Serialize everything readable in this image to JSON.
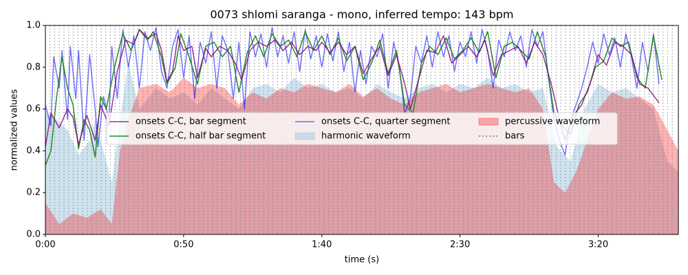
{
  "chart_data": {
    "type": "line",
    "title": "0073 shlomi saranga - mono, inferred tempo: 143 bpm",
    "x_label": "time (s)",
    "y_label": "normalized values",
    "xlim": [
      0,
      229
    ],
    "ylim": [
      0,
      1
    ],
    "xticks": [
      {
        "value": 0,
        "label": "0:00"
      },
      {
        "value": 50,
        "label": "0:50"
      },
      {
        "value": 100,
        "label": "1:40"
      },
      {
        "value": 150,
        "label": "2:30"
      },
      {
        "value": 200,
        "label": "3:20"
      }
    ],
    "yticks": [
      {
        "value": 0,
        "label": "0.0"
      },
      0.2,
      0.4,
      0.6,
      0.8,
      {
        "value": 1,
        "label": "1.0"
      }
    ],
    "legend": "center",
    "legend_columns": 3,
    "series": [
      {
        "name": "onsets C-C, bar segment",
        "type": "line",
        "color": "#800080",
        "opacity": 0.8,
        "x": [
          0,
          2,
          5,
          8,
          10,
          12,
          15,
          18,
          20,
          23,
          26,
          29,
          32,
          34,
          37,
          40,
          42,
          44,
          46,
          48,
          50,
          53,
          55,
          58,
          60,
          63,
          66,
          69,
          71,
          74,
          77,
          80,
          83,
          86,
          89,
          92,
          95,
          98,
          100,
          103,
          106,
          109,
          112,
          115,
          118,
          121,
          124,
          127,
          130,
          132,
          135,
          138,
          141,
          144,
          147,
          150,
          153,
          156,
          159,
          162,
          165,
          168,
          171,
          174,
          177,
          180,
          183,
          186,
          188,
          191,
          194,
          197,
          200,
          203,
          206,
          209,
          212,
          215,
          218,
          222
        ],
        "values": [
          0.42,
          0.58,
          0.51,
          0.6,
          0.56,
          0.43,
          0.57,
          0.45,
          0.62,
          0.52,
          0.78,
          0.93,
          0.91,
          0.98,
          0.94,
          0.96,
          0.88,
          0.73,
          0.78,
          0.95,
          0.88,
          0.9,
          0.75,
          0.89,
          0.85,
          0.9,
          0.88,
          0.81,
          0.74,
          0.88,
          0.92,
          0.9,
          0.93,
          0.88,
          0.92,
          0.86,
          0.9,
          0.88,
          0.92,
          0.87,
          0.92,
          0.86,
          0.9,
          0.77,
          0.84,
          0.9,
          0.76,
          0.86,
          0.72,
          0.6,
          0.74,
          0.88,
          0.87,
          0.95,
          0.82,
          0.86,
          0.9,
          0.85,
          0.93,
          0.76,
          0.86,
          0.88,
          0.9,
          0.82,
          0.92,
          0.86,
          0.72,
          0.55,
          0.45,
          0.57,
          0.62,
          0.72,
          0.86,
          0.81,
          0.92,
          0.9,
          0.86,
          0.72,
          0.7,
          0.63
        ]
      },
      {
        "name": "onsets C-C, half bar segment",
        "type": "line",
        "color": "#228b22",
        "opacity": 1,
        "x": [
          0,
          2,
          4,
          6,
          8,
          10,
          12,
          14,
          16,
          18,
          20,
          22,
          25,
          28,
          31,
          34,
          37,
          39,
          42,
          44,
          47,
          49,
          52,
          55,
          58,
          61,
          64,
          67,
          70,
          73,
          76,
          79,
          82,
          85,
          88,
          91,
          94,
          97,
          100,
          103,
          106,
          109,
          112,
          115,
          118,
          121,
          124,
          127,
          130,
          133,
          136,
          139,
          142,
          145,
          148,
          151,
          154,
          157,
          160,
          163,
          166,
          169,
          172,
          175,
          178,
          181,
          184,
          187,
          190,
          193,
          196,
          199,
          202,
          205,
          208,
          211,
          214,
          217,
          220,
          223
        ],
        "values": [
          0.33,
          0.4,
          0.65,
          0.85,
          0.7,
          0.62,
          0.41,
          0.55,
          0.5,
          0.37,
          0.66,
          0.6,
          0.8,
          0.96,
          0.88,
          0.98,
          0.93,
          0.97,
          0.85,
          0.72,
          0.8,
          0.96,
          0.85,
          0.72,
          0.9,
          0.92,
          0.85,
          0.9,
          0.68,
          0.87,
          0.95,
          0.85,
          0.96,
          0.9,
          0.93,
          0.85,
          0.97,
          0.88,
          0.95,
          0.86,
          0.94,
          0.83,
          0.9,
          0.74,
          0.82,
          0.93,
          0.77,
          0.88,
          0.62,
          0.58,
          0.82,
          0.9,
          0.86,
          0.94,
          0.84,
          0.88,
          0.94,
          0.87,
          0.97,
          0.75,
          0.9,
          0.92,
          0.88,
          0.84,
          0.97,
          0.85,
          0.58,
          0.52,
          0.48,
          0.62,
          0.68,
          0.8,
          0.83,
          0.94,
          0.9,
          0.92,
          0.75,
          0.7,
          0.95,
          0.74
        ]
      },
      {
        "name": "onsets C-C, quarter segment",
        "type": "line",
        "color": "#0000ff",
        "opacity": 0.55,
        "x": [
          0,
          2,
          3,
          5,
          6,
          8,
          9,
          11,
          12,
          14,
          16,
          18,
          19,
          21,
          23,
          24,
          26,
          28,
          30,
          32,
          34,
          36,
          38,
          40,
          42,
          44,
          46,
          48,
          50,
          52,
          54,
          56,
          58,
          60,
          62,
          64,
          66,
          68,
          70,
          72,
          74,
          76,
          78,
          80,
          82,
          84,
          86,
          88,
          90,
          92,
          94,
          96,
          98,
          100,
          102,
          104,
          106,
          108,
          110,
          112,
          114,
          116,
          118,
          120,
          122,
          124,
          126,
          128,
          130,
          132,
          134,
          136,
          138,
          140,
          142,
          144,
          146,
          148,
          150,
          152,
          154,
          156,
          158,
          160,
          162,
          164,
          166,
          168,
          170,
          172,
          174,
          176,
          178,
          180,
          182,
          184,
          186,
          188,
          190,
          192,
          194,
          196,
          198,
          200,
          202,
          204,
          206,
          208,
          210,
          212,
          214,
          216,
          218,
          220,
          222
        ],
        "values": [
          0.62,
          0.52,
          0.85,
          0.7,
          0.88,
          0.55,
          0.9,
          0.65,
          0.88,
          0.45,
          0.86,
          0.6,
          0.42,
          0.66,
          0.55,
          0.9,
          0.65,
          0.98,
          0.8,
          0.95,
          0.7,
          0.97,
          0.88,
          0.99,
          0.78,
          0.7,
          0.9,
          0.98,
          0.75,
          0.95,
          0.65,
          0.92,
          0.82,
          0.97,
          0.7,
          0.95,
          0.88,
          0.65,
          0.92,
          0.6,
          0.97,
          0.85,
          0.96,
          0.8,
          0.99,
          0.85,
          0.95,
          0.82,
          0.97,
          0.78,
          0.98,
          0.84,
          0.95,
          0.8,
          0.96,
          0.83,
          0.97,
          0.78,
          0.92,
          0.68,
          0.88,
          0.72,
          0.9,
          0.85,
          0.96,
          0.7,
          0.92,
          0.8,
          0.58,
          0.65,
          0.9,
          0.82,
          0.95,
          0.8,
          0.97,
          0.85,
          0.95,
          0.78,
          0.92,
          0.85,
          0.97,
          0.82,
          0.98,
          0.88,
          0.7,
          0.93,
          0.85,
          0.97,
          0.88,
          0.95,
          0.8,
          0.98,
          0.9,
          0.97,
          0.75,
          0.55,
          0.45,
          0.38,
          0.55,
          0.62,
          0.7,
          0.8,
          0.92,
          0.82,
          0.96,
          0.86,
          0.94,
          0.8,
          0.96,
          0.85,
          0.7,
          0.92,
          0.78,
          0.96,
          0.72
        ]
      },
      {
        "name": "harmonic waveform",
        "type": "area",
        "color": "#9ec8e0",
        "opacity": 0.5,
        "x": [
          0,
          4,
          8,
          12,
          16,
          18,
          20,
          24,
          27,
          30,
          34,
          40,
          45,
          50,
          55,
          60,
          65,
          70,
          75,
          80,
          85,
          90,
          95,
          100,
          105,
          110,
          115,
          120,
          125,
          130,
          135,
          140,
          145,
          150,
          155,
          160,
          165,
          170,
          175,
          180,
          185,
          190,
          195,
          200,
          205,
          210,
          215,
          220,
          225,
          229
        ],
        "values": [
          0.58,
          0.55,
          0.5,
          0.38,
          0.45,
          0.55,
          0.45,
          0.25,
          0.55,
          0.82,
          0.6,
          0.7,
          0.65,
          0.68,
          0.62,
          0.7,
          0.65,
          0.6,
          0.7,
          0.72,
          0.68,
          0.75,
          0.7,
          0.72,
          0.68,
          0.7,
          0.65,
          0.72,
          0.68,
          0.65,
          0.7,
          0.72,
          0.68,
          0.72,
          0.7,
          0.75,
          0.7,
          0.72,
          0.68,
          0.7,
          0.42,
          0.35,
          0.6,
          0.72,
          0.68,
          0.7,
          0.65,
          0.6,
          0.35,
          0.3
        ]
      },
      {
        "name": "percussive waveform",
        "type": "area",
        "color": "#ff0000",
        "opacity": 0.3,
        "x": [
          0,
          5,
          10,
          15,
          20,
          24,
          27,
          30,
          34,
          40,
          45,
          50,
          55,
          60,
          65,
          70,
          75,
          80,
          85,
          90,
          95,
          100,
          105,
          110,
          115,
          120,
          125,
          130,
          135,
          140,
          145,
          150,
          155,
          160,
          165,
          170,
          175,
          180,
          184,
          188,
          192,
          196,
          200,
          205,
          210,
          215,
          220,
          225,
          229
        ],
        "values": [
          0.15,
          0.05,
          0.1,
          0.08,
          0.12,
          0.05,
          0.4,
          0.55,
          0.7,
          0.72,
          0.68,
          0.75,
          0.7,
          0.72,
          0.7,
          0.62,
          0.68,
          0.65,
          0.7,
          0.68,
          0.72,
          0.7,
          0.68,
          0.72,
          0.66,
          0.7,
          0.65,
          0.62,
          0.68,
          0.7,
          0.72,
          0.68,
          0.7,
          0.72,
          0.7,
          0.68,
          0.7,
          0.6,
          0.25,
          0.2,
          0.3,
          0.45,
          0.6,
          0.68,
          0.65,
          0.66,
          0.62,
          0.5,
          0.4
        ]
      },
      {
        "name": "bars",
        "type": "vlines",
        "color": "#808080",
        "opacity": 0.8,
        "x": [
          0,
          1.68,
          3.36,
          5.04,
          6.72,
          8.4,
          10.08,
          11.76,
          13.44,
          15.12,
          16.8,
          18.48,
          20.16,
          21.84,
          23.52,
          25.2,
          26.88,
          28.56,
          30.24,
          31.92,
          33.6,
          35.28,
          36.96,
          38.64,
          40.32,
          42,
          43.68,
          45.36,
          47.04,
          48.72,
          50.4,
          52.08,
          53.76,
          55.44,
          57.12,
          58.8,
          60.48,
          62.16,
          63.84,
          65.52,
          67.2,
          68.88,
          70.56,
          72.24,
          73.92,
          75.6,
          77.28,
          78.96,
          80.64,
          82.32,
          84,
          85.68,
          87.36,
          89.04,
          90.72,
          92.4,
          94.08,
          95.76,
          97.44,
          99.12,
          100.8,
          102.48,
          104.16,
          105.84,
          107.52,
          109.2,
          110.88,
          112.56,
          114.24,
          115.92,
          117.6,
          119.28,
          120.96,
          122.64,
          124.32,
          126,
          127.68,
          129.36,
          131.04,
          132.72,
          134.4,
          136.08,
          137.76,
          139.44,
          141.12,
          142.8,
          144.48,
          146.16,
          147.84,
          149.52,
          151.2,
          152.88,
          154.56,
          156.24,
          157.92,
          159.6,
          161.28,
          162.96,
          164.64,
          166.32,
          168,
          169.68,
          171.36,
          173.04,
          174.72,
          176.4,
          178.08,
          179.76,
          181.44,
          183.12,
          184.8,
          186.48,
          188.16,
          189.84,
          191.52,
          193.2,
          194.88,
          196.56,
          198.24,
          199.92,
          201.6,
          203.28,
          204.96,
          206.64,
          208.32,
          210,
          211.68,
          213.36,
          215.04,
          216.72,
          218.4,
          220.08,
          221.76,
          223.44,
          225.12,
          226.8
        ]
      }
    ]
  }
}
